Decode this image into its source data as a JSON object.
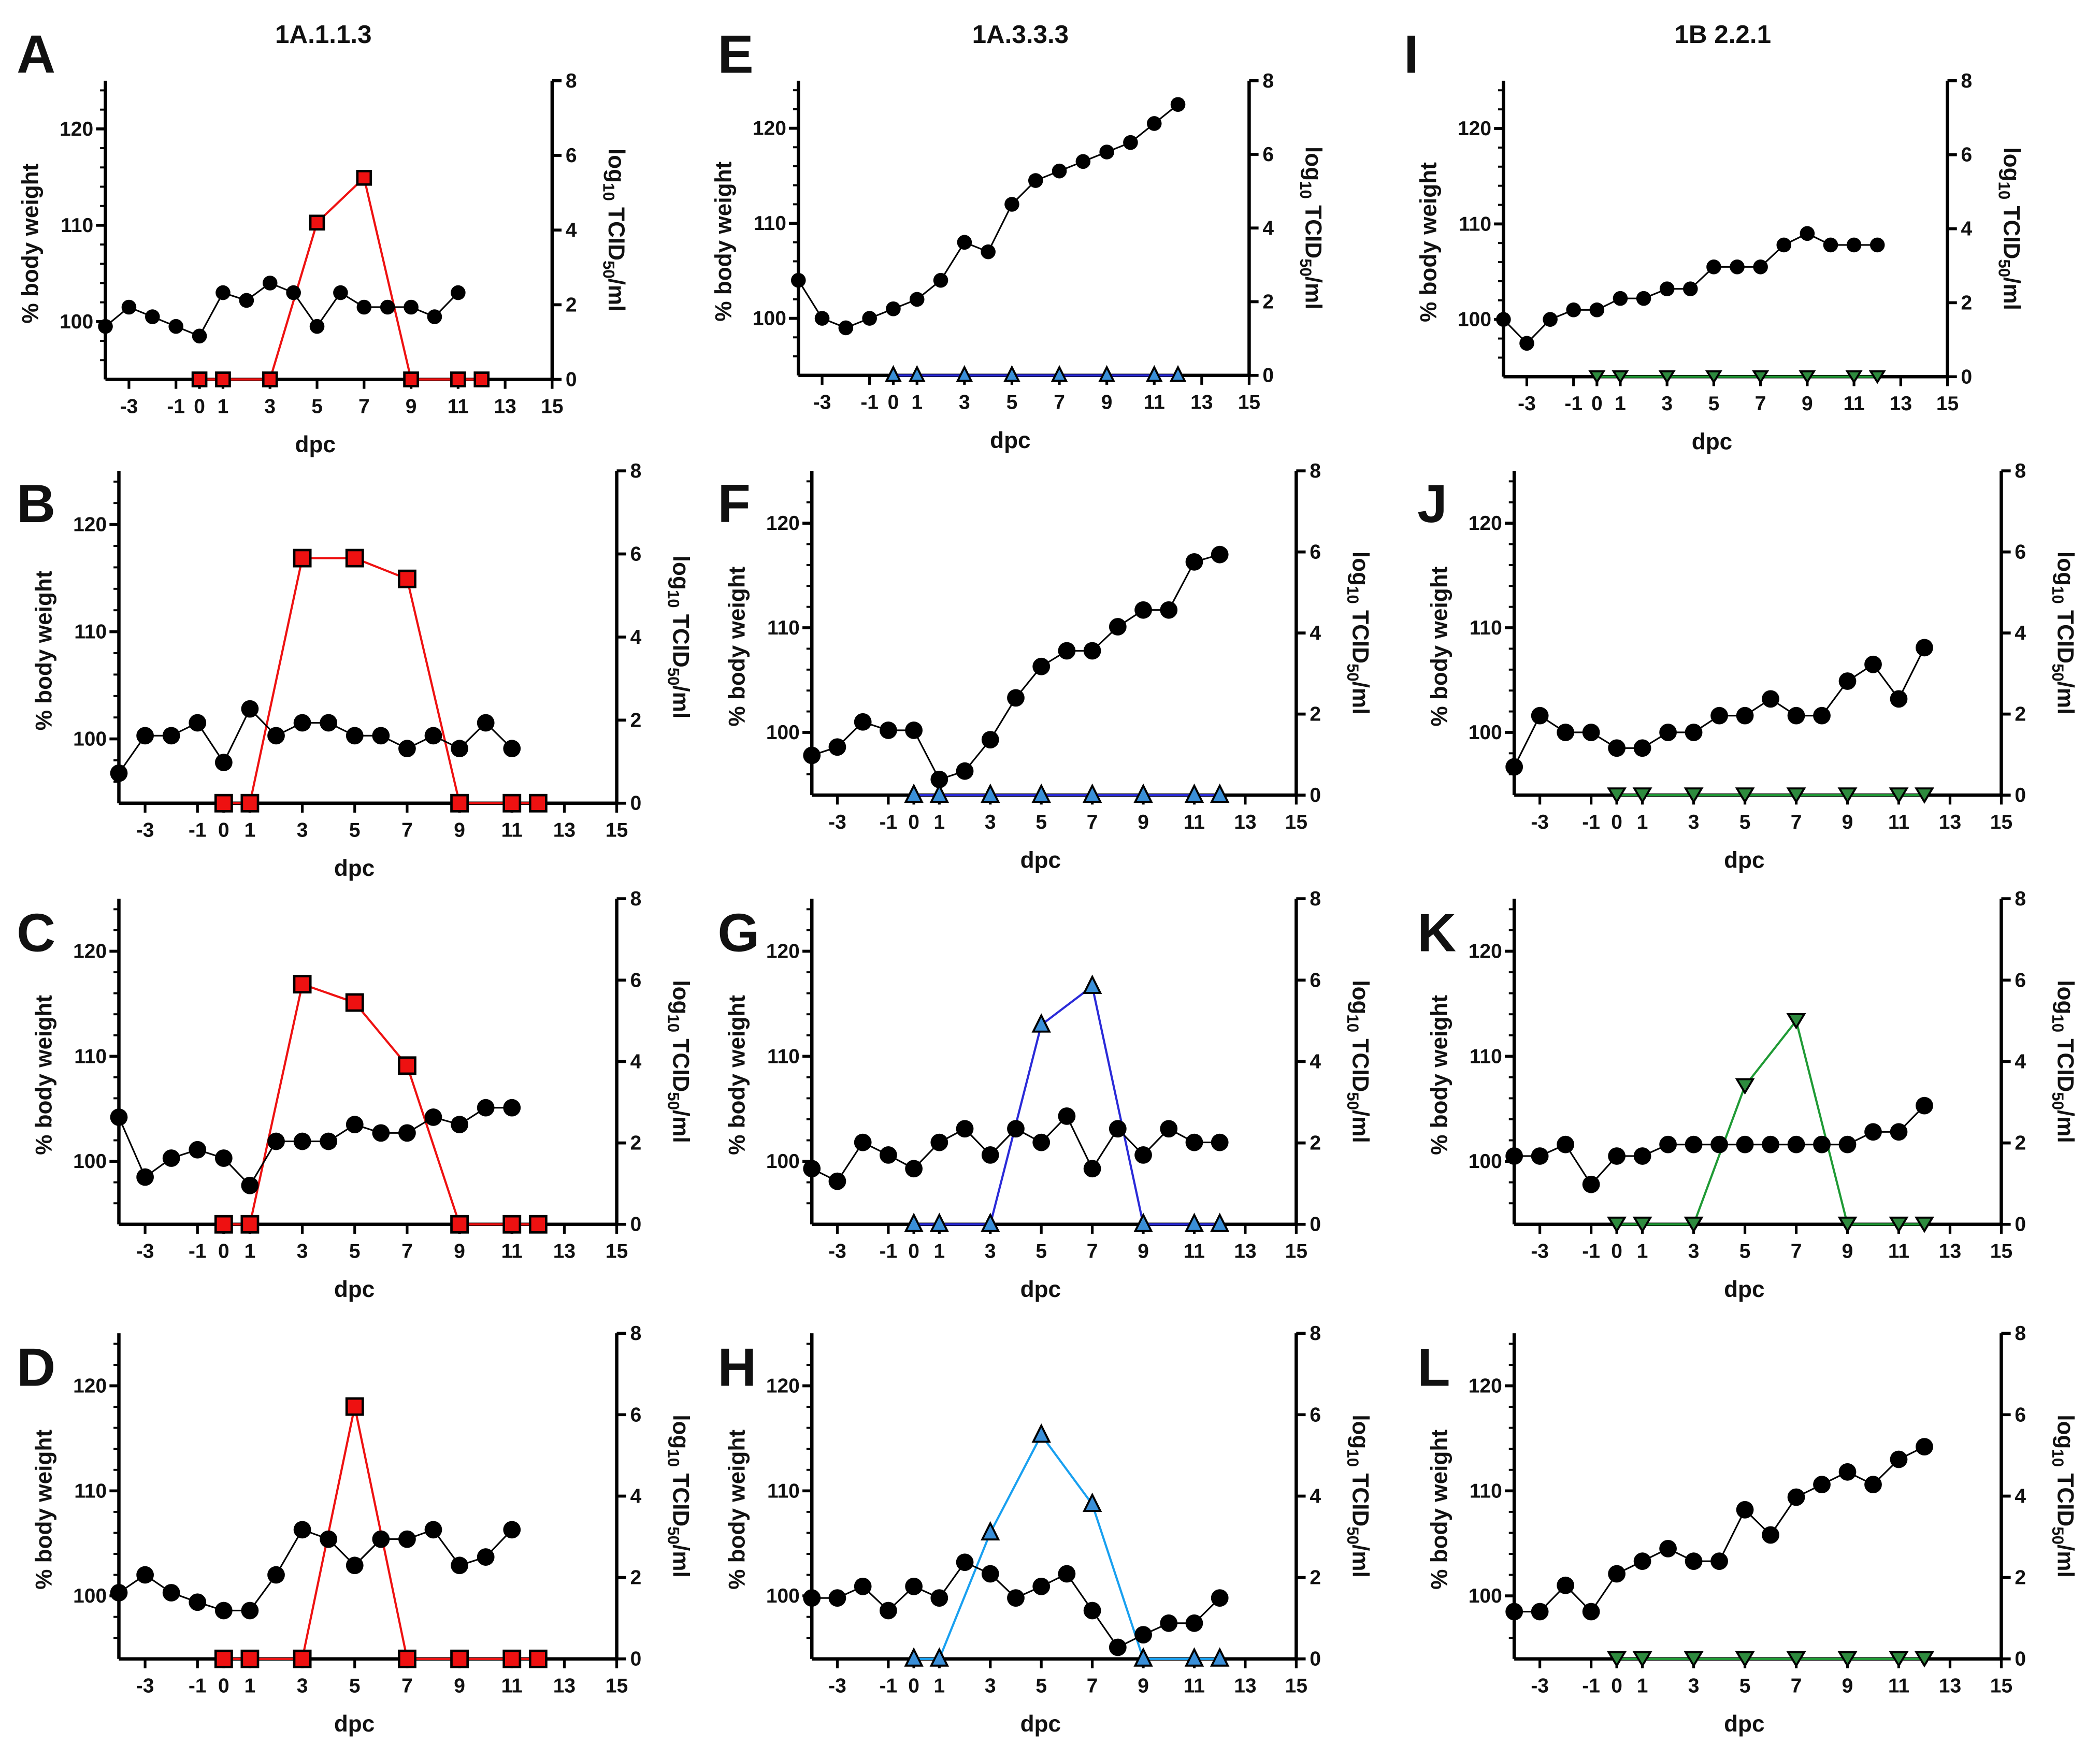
{
  "chart_data": {
    "type": "line",
    "columns": [
      {
        "title": "1A.1.1.3"
      },
      {
        "title": "1A.3.3.3"
      },
      {
        "title": "1B 2.2.1"
      }
    ],
    "xlabel": "dpc",
    "ylabel_left": "% body weight",
    "ylabel_right": "log10 TCID50/ml",
    "x_range": [
      -4,
      15
    ],
    "x_ticks": [
      -3,
      -1,
      0,
      1,
      3,
      5,
      7,
      9,
      11,
      13,
      15
    ],
    "ylim_left": [
      94,
      125
    ],
    "y_ticks_left": [
      100,
      110,
      120
    ],
    "ylim_right": [
      0,
      8
    ],
    "y_ticks_right": [
      0,
      2,
      4,
      6,
      8
    ],
    "x_weight": [
      -4,
      -3,
      -2,
      -1,
      0,
      1,
      2,
      3,
      4,
      5,
      6,
      7,
      8,
      9,
      10,
      11,
      12
    ],
    "x_virus": [
      0,
      1,
      3,
      5,
      7,
      9,
      11,
      12
    ],
    "colors": {
      "weight": "#000000",
      "red": "#ee1111",
      "navy": "#2a2ad8",
      "lightblue": "#19a0f0",
      "green": "#1f9a35",
      "blue_fill": "#3a8fd8"
    },
    "panels": [
      {
        "label": "A",
        "column": 0,
        "marker": "square",
        "line_color": "#ee1111",
        "fill": "#ee1111",
        "weight": [
          99.5,
          101.5,
          100.5,
          99.5,
          98.5,
          103,
          102.2,
          104,
          103,
          99.5,
          103,
          101.5,
          101.5,
          101.5,
          100.5,
          103
        ],
        "virus": [
          0,
          0,
          0,
          4.2,
          5.4,
          0,
          0,
          0
        ]
      },
      {
        "label": "B",
        "column": 0,
        "marker": "square",
        "line_color": "#ee1111",
        "fill": "#ee1111",
        "weight": [
          96.8,
          100.3,
          100.3,
          101.5,
          97.8,
          102.8,
          100.3,
          101.5,
          101.5,
          100.3,
          100.3,
          99.1,
          100.3,
          99.1,
          101.5,
          99.1
        ],
        "virus": [
          0,
          0,
          5.9,
          5.9,
          5.4,
          0,
          0,
          0
        ]
      },
      {
        "label": "C",
        "column": 0,
        "marker": "square",
        "line_color": "#ee1111",
        "fill": "#ee1111",
        "weight": [
          104.2,
          98.5,
          100.3,
          101.1,
          100.3,
          97.7,
          101.9,
          101.9,
          101.9,
          103.5,
          102.7,
          102.7,
          104.2,
          103.5,
          105.1,
          105.1
        ],
        "virus": [
          0,
          0,
          5.9,
          5.45,
          3.9,
          0,
          0,
          0
        ]
      },
      {
        "label": "D",
        "column": 0,
        "marker": "square",
        "line_color": "#ee1111",
        "fill": "#ee1111",
        "weight": [
          100.3,
          102,
          100.3,
          99.4,
          98.6,
          98.6,
          102,
          106.3,
          105.4,
          102.9,
          105.4,
          105.4,
          106.3,
          102.9,
          103.7,
          106.3
        ],
        "virus": [
          0,
          0,
          0,
          6.2,
          0,
          0,
          0,
          0
        ]
      },
      {
        "label": "E",
        "column": 1,
        "marker": "triangle-up",
        "line_color": "#2a2ad8",
        "fill": "#3a8fd8",
        "weight": [
          104,
          100,
          99,
          100,
          101,
          102,
          104,
          108,
          107,
          112,
          114.5,
          115.5,
          116.5,
          117.5,
          118.5,
          120.5,
          122.5
        ],
        "virus": [
          0,
          0,
          0,
          0,
          0,
          0,
          0,
          0
        ]
      },
      {
        "label": "F",
        "column": 1,
        "marker": "triangle-up",
        "line_color": "#2a2ad8",
        "fill": "#3a8fd8",
        "weight": [
          97.8,
          98.6,
          101,
          100.2,
          100.2,
          95.5,
          96.3,
          99.3,
          103.3,
          106.3,
          107.8,
          107.8,
          110.1,
          111.7,
          111.7,
          116.3,
          117
        ],
        "virus": [
          0,
          0,
          0,
          0,
          0,
          0,
          0,
          0
        ]
      },
      {
        "label": "G",
        "column": 1,
        "marker": "triangle-up",
        "line_color": "#2a2ad8",
        "fill": "#3a8fd8",
        "weight": [
          99.3,
          98.1,
          101.8,
          100.6,
          99.3,
          101.8,
          103.1,
          100.6,
          103.1,
          101.8,
          104.3,
          99.3,
          103.1,
          100.6,
          103.1,
          101.8,
          101.8
        ],
        "virus": [
          0,
          0,
          0,
          4.9,
          5.85,
          0,
          0,
          0
        ]
      },
      {
        "label": "H",
        "column": 1,
        "marker": "triangle-up",
        "line_color": "#19a0f0",
        "fill": "#3a8fd8",
        "weight": [
          99.8,
          99.8,
          100.9,
          98.6,
          100.9,
          99.8,
          103.2,
          102.1,
          99.8,
          100.9,
          102.1,
          98.6,
          95.1,
          96.3,
          97.4,
          97.4,
          99.8
        ],
        "virus": [
          0,
          0,
          3.1,
          5.5,
          3.8,
          0,
          0,
          0
        ]
      },
      {
        "label": "I",
        "column": 2,
        "marker": "triangle-down",
        "line_color": "#1f9a35",
        "fill": "#2e8b3e",
        "weight": [
          100,
          97.5,
          100,
          101,
          101,
          102.2,
          102.2,
          103.2,
          103.2,
          105.5,
          105.5,
          105.5,
          107.8,
          109,
          107.8,
          107.8,
          107.8
        ],
        "virus": [
          0,
          0,
          0,
          0,
          0,
          0,
          0,
          0
        ]
      },
      {
        "label": "J",
        "column": 2,
        "marker": "triangle-down",
        "line_color": "#1f9a35",
        "fill": "#2e8b3e",
        "weight": [
          96.7,
          101.6,
          100,
          100,
          98.5,
          98.5,
          100,
          100,
          101.6,
          101.6,
          103.2,
          101.6,
          101.6,
          104.9,
          106.5,
          103.2,
          108.1
        ],
        "virus": [
          0,
          0,
          0,
          0,
          0,
          0,
          0,
          0
        ]
      },
      {
        "label": "K",
        "column": 2,
        "marker": "triangle-down",
        "line_color": "#1f9a35",
        "fill": "#2e8b3e",
        "weight": [
          100.5,
          100.5,
          101.6,
          97.8,
          100.5,
          100.5,
          101.6,
          101.6,
          101.6,
          101.6,
          101.6,
          101.6,
          101.6,
          101.6,
          102.8,
          102.8,
          105.3
        ],
        "virus": [
          0,
          0,
          0,
          3.4,
          5,
          0,
          0,
          0
        ]
      },
      {
        "label": "L",
        "column": 2,
        "marker": "triangle-down",
        "line_color": "#1f9a35",
        "fill": "#2e8b3e",
        "weight": [
          98.5,
          98.5,
          101,
          98.5,
          102.1,
          103.3,
          104.5,
          103.3,
          103.3,
          108.2,
          105.8,
          109.4,
          110.6,
          111.8,
          110.6,
          113,
          114.2
        ],
        "virus": [
          0,
          0,
          0,
          0,
          0,
          0,
          0,
          0
        ]
      }
    ]
  }
}
